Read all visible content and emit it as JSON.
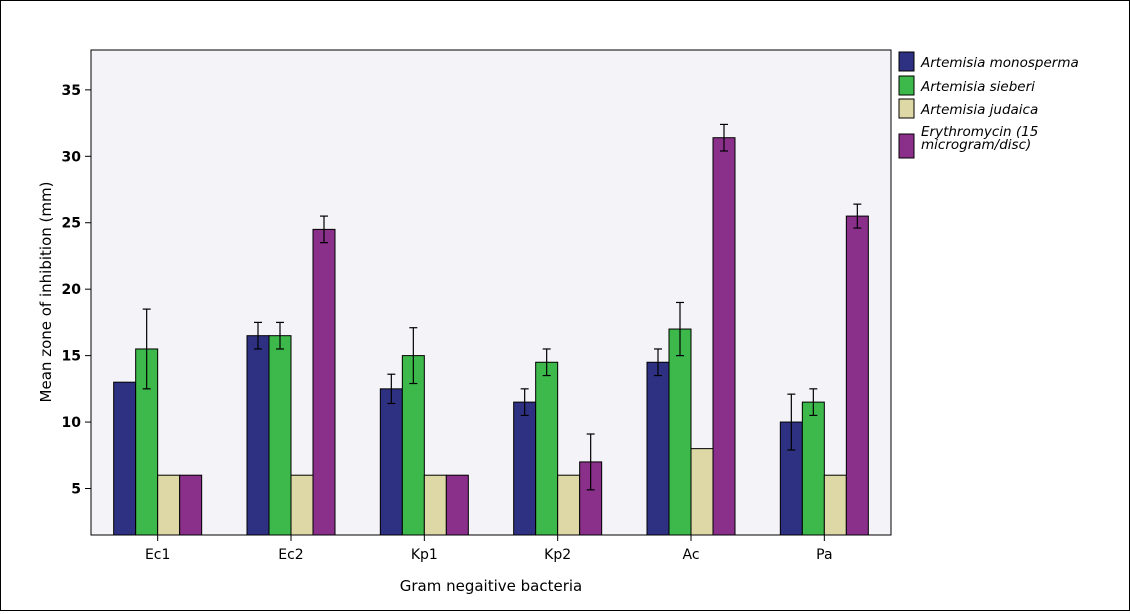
{
  "chart_data": {
    "type": "bar",
    "title": "",
    "xlabel": "Gram negaitive bacteria",
    "ylabel": "Mean zone of inhibition (mm)",
    "ylim": [
      1.5,
      38
    ],
    "yticks": [
      5,
      10,
      15,
      20,
      25,
      30,
      35
    ],
    "grid": false,
    "legend_position": "right",
    "categories": [
      "Ec1",
      "Ec2",
      "Kp1",
      "Kp2",
      "Ac",
      "Pa"
    ],
    "series": [
      {
        "name": "Artemisia monosperma",
        "color": "#2e3182",
        "values": [
          13,
          16.5,
          12.5,
          11.5,
          14.5,
          10
        ],
        "error": [
          null,
          1.0,
          1.1,
          1.0,
          1.0,
          2.1
        ]
      },
      {
        "name": "Artemisia sieberi",
        "color": "#3db84a",
        "values": [
          15.5,
          16.5,
          15,
          14.5,
          17,
          11.5
        ],
        "error": [
          3.0,
          1.0,
          2.1,
          1.0,
          2.0,
          1.0
        ]
      },
      {
        "name": "Artemisia judaica",
        "color": "#ded8a6",
        "values": [
          6,
          6,
          6,
          6,
          8,
          6
        ],
        "error": [
          null,
          null,
          null,
          null,
          null,
          null
        ]
      },
      {
        "name": "Erythromycin (15 microgram/disc)",
        "color": "#8a2f8a",
        "values": [
          6,
          24.5,
          6,
          7,
          31.4,
          25.5
        ],
        "error": [
          null,
          1.0,
          null,
          2.1,
          1.0,
          0.9
        ]
      }
    ]
  }
}
